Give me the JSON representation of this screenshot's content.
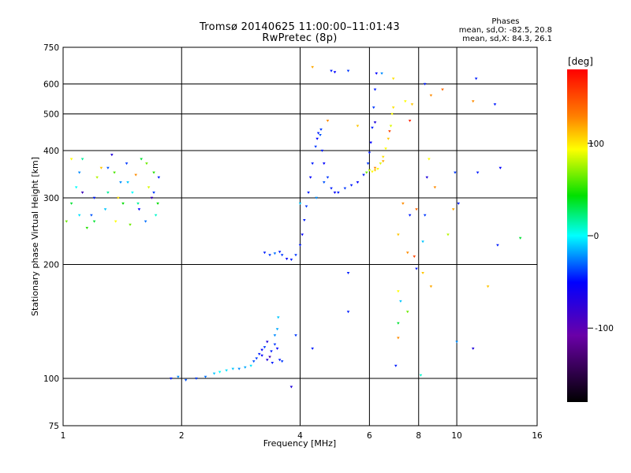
{
  "chart_data": {
    "type": "scatter",
    "title": "Tromsø 20140625 11:00:00–11:01:43",
    "subtitle": "RwPretec (8p)",
    "xlabel": "Frequency [MHz]",
    "ylabel": "Stationary phase Virtual Height [km]",
    "x_scale": "log",
    "y_scale": "log",
    "xlim": [
      1,
      16
    ],
    "ylim": [
      75,
      750
    ],
    "x_ticks": [
      1,
      2,
      4,
      6,
      8,
      10,
      16
    ],
    "y_ticks": [
      75,
      100,
      200,
      300,
      400,
      500,
      600,
      750
    ],
    "grid": true,
    "phase_stats": {
      "heading": "Phases",
      "line_o": "mean, sd,O: -82.5, 20.8",
      "line_x": "mean, sd,X:  84.3, 26.1"
    },
    "colorbar": {
      "label": "[deg]",
      "range": [
        -180,
        180
      ],
      "ticks": [
        100,
        0,
        -100
      ]
    },
    "series": [
      {
        "points": [
          [
            1.88,
            100,
            -100
          ],
          [
            1.96,
            101,
            -60
          ],
          [
            2.05,
            99,
            -80
          ],
          [
            2.18,
            100,
            -90
          ],
          [
            2.3,
            101,
            -70
          ],
          [
            2.42,
            103,
            -40
          ],
          [
            2.5,
            104,
            -20
          ],
          [
            2.6,
            105,
            -30
          ],
          [
            2.7,
            106,
            -40
          ],
          [
            2.8,
            106,
            -60
          ],
          [
            2.9,
            107,
            -50
          ],
          [
            3.0,
            108,
            -30
          ],
          [
            3.05,
            111,
            -80
          ],
          [
            3.1,
            113,
            -90
          ],
          [
            3.15,
            116,
            -100
          ],
          [
            3.2,
            119,
            -110
          ],
          [
            3.25,
            121,
            -90
          ],
          [
            3.3,
            112,
            -120
          ],
          [
            3.35,
            114,
            -130
          ],
          [
            3.4,
            110,
            -100
          ],
          [
            3.45,
            123,
            -90
          ],
          [
            3.5,
            120,
            -110
          ],
          [
            3.55,
            112,
            -100
          ],
          [
            3.6,
            111,
            -90
          ],
          [
            3.45,
            130,
            -60
          ],
          [
            3.5,
            135,
            -50
          ],
          [
            3.52,
            145,
            -40
          ],
          [
            3.2,
            115,
            -110
          ],
          [
            3.3,
            125,
            -120
          ],
          [
            3.38,
            118,
            -100
          ]
        ]
      },
      {
        "points": [
          [
            3.25,
            215,
            -100
          ],
          [
            3.35,
            212,
            -90
          ],
          [
            3.45,
            214,
            -70
          ],
          [
            3.55,
            216,
            -100
          ],
          [
            3.6,
            212,
            -90
          ],
          [
            3.7,
            207,
            -110
          ],
          [
            3.8,
            206,
            -100
          ],
          [
            3.9,
            212,
            -90
          ],
          [
            4.0,
            225,
            -100
          ],
          [
            4.05,
            240,
            -110
          ],
          [
            4.1,
            262,
            -100
          ],
          [
            4.15,
            285,
            -90
          ],
          [
            4.2,
            310,
            -100
          ],
          [
            4.25,
            340,
            -110
          ],
          [
            4.3,
            370,
            -100
          ],
          [
            4.38,
            410,
            -90
          ],
          [
            4.45,
            445,
            -100
          ],
          [
            4.5,
            440,
            -80
          ],
          [
            4.55,
            400,
            -100
          ],
          [
            4.6,
            370,
            -110
          ],
          [
            4.7,
            340,
            -90
          ],
          [
            4.8,
            318,
            -100
          ],
          [
            4.9,
            310,
            -110
          ],
          [
            5.0,
            310,
            -100
          ],
          [
            5.2,
            318,
            -90
          ],
          [
            5.4,
            324,
            -100
          ],
          [
            5.6,
            330,
            -110
          ],
          [
            5.8,
            345,
            -100
          ],
          [
            5.95,
            370,
            -90
          ],
          [
            6.0,
            395,
            -100
          ],
          [
            6.05,
            420,
            -110
          ],
          [
            6.1,
            460,
            -100
          ],
          [
            6.15,
            520,
            -90
          ],
          [
            6.2,
            580,
            -100
          ],
          [
            6.25,
            640,
            -110
          ],
          [
            4.42,
            430,
            -110
          ],
          [
            4.52,
            455,
            -90
          ],
          [
            4.6,
            330,
            -80
          ],
          [
            4.4,
            300,
            -60
          ],
          [
            4.0,
            290,
            -40
          ]
        ]
      },
      {
        "points": [
          [
            5.9,
            350,
            60
          ],
          [
            6.0,
            355,
            80
          ],
          [
            6.1,
            352,
            100
          ],
          [
            6.2,
            355,
            120
          ],
          [
            6.3,
            358,
            100
          ],
          [
            6.4,
            370,
            90
          ],
          [
            6.5,
            385,
            110
          ],
          [
            6.6,
            405,
            100
          ],
          [
            6.7,
            430,
            120
          ],
          [
            6.8,
            465,
            90
          ],
          [
            6.85,
            500,
            100
          ],
          [
            6.9,
            520,
            110
          ],
          [
            6.2,
            360,
            140
          ],
          [
            6.5,
            375,
            130
          ],
          [
            6.75,
            450,
            160
          ]
        ]
      },
      {
        "points": [
          [
            1.02,
            260,
            60
          ],
          [
            1.05,
            290,
            20
          ],
          [
            1.08,
            320,
            -20
          ],
          [
            1.1,
            350,
            -60
          ],
          [
            1.12,
            380,
            0
          ],
          [
            1.15,
            250,
            40
          ],
          [
            1.18,
            270,
            -80
          ],
          [
            1.2,
            300,
            -100
          ],
          [
            1.22,
            340,
            80
          ],
          [
            1.25,
            360,
            120
          ],
          [
            1.28,
            280,
            -40
          ],
          [
            1.3,
            310,
            0
          ],
          [
            1.33,
            390,
            -120
          ],
          [
            1.36,
            260,
            100
          ],
          [
            1.4,
            330,
            -60
          ],
          [
            1.42,
            290,
            30
          ],
          [
            1.45,
            370,
            -90
          ],
          [
            1.48,
            255,
            60
          ],
          [
            1.5,
            310,
            -20
          ],
          [
            1.53,
            345,
            140
          ],
          [
            1.56,
            280,
            -110
          ],
          [
            1.58,
            380,
            20
          ],
          [
            1.62,
            260,
            -70
          ],
          [
            1.65,
            320,
            90
          ],
          [
            1.68,
            300,
            -130
          ],
          [
            1.7,
            350,
            40
          ],
          [
            1.72,
            270,
            -10
          ],
          [
            1.75,
            340,
            -100
          ],
          [
            1.05,
            380,
            100
          ],
          [
            1.12,
            310,
            -130
          ],
          [
            1.2,
            260,
            20
          ],
          [
            1.3,
            360,
            -80
          ],
          [
            1.38,
            300,
            110
          ],
          [
            1.46,
            330,
            -40
          ],
          [
            1.55,
            290,
            0
          ],
          [
            1.63,
            370,
            60
          ],
          [
            1.7,
            310,
            -90
          ],
          [
            1.74,
            290,
            30
          ],
          [
            1.1,
            270,
            -30
          ],
          [
            1.35,
            350,
            50
          ]
        ]
      },
      {
        "points": [
          [
            4.3,
            665,
            130
          ],
          [
            4.8,
            650,
            -100
          ],
          [
            4.9,
            645,
            -110
          ],
          [
            5.3,
            650,
            -90
          ],
          [
            6.45,
            640,
            -60
          ],
          [
            6.9,
            620,
            110
          ],
          [
            7.4,
            540,
            100
          ],
          [
            7.7,
            530,
            120
          ],
          [
            8.3,
            600,
            -100
          ],
          [
            8.6,
            560,
            140
          ],
          [
            9.2,
            580,
            150
          ],
          [
            11.2,
            620,
            -100
          ],
          [
            11.0,
            540,
            140
          ],
          [
            12.5,
            530,
            -100
          ],
          [
            4.7,
            480,
            140
          ],
          [
            5.6,
            465,
            120
          ],
          [
            6.2,
            475,
            -120
          ],
          [
            7.6,
            480,
            170
          ],
          [
            8.5,
            380,
            100
          ],
          [
            8.4,
            340,
            -120
          ],
          [
            8.8,
            320,
            140
          ],
          [
            9.9,
            350,
            -90
          ],
          [
            11.3,
            350,
            -100
          ],
          [
            12.9,
            360,
            -110
          ],
          [
            7.3,
            290,
            140
          ],
          [
            7.6,
            270,
            -100
          ],
          [
            7.9,
            280,
            150
          ],
          [
            8.3,
            270,
            -90
          ],
          [
            9.8,
            280,
            130
          ],
          [
            10.1,
            290,
            -100
          ],
          [
            7.1,
            240,
            120
          ],
          [
            8.2,
            230,
            -40
          ],
          [
            9.5,
            240,
            80
          ],
          [
            12.7,
            225,
            -100
          ],
          [
            14.5,
            235,
            20
          ],
          [
            7.5,
            215,
            140
          ],
          [
            7.8,
            210,
            160
          ],
          [
            7.9,
            195,
            -100
          ],
          [
            8.2,
            190,
            120
          ],
          [
            8.6,
            175,
            130
          ],
          [
            7.1,
            170,
            100
          ],
          [
            7.2,
            160,
            -40
          ],
          [
            7.5,
            150,
            60
          ],
          [
            7.1,
            140,
            20
          ],
          [
            7.1,
            128,
            140
          ],
          [
            7.0,
            108,
            -100
          ],
          [
            8.1,
            102,
            -10
          ],
          [
            4.3,
            120,
            -100
          ],
          [
            5.3,
            190,
            -100
          ],
          [
            5.3,
            150,
            -100
          ],
          [
            3.8,
            95,
            -120
          ],
          [
            11.0,
            120,
            -120
          ],
          [
            12.0,
            175,
            120
          ],
          [
            10.0,
            125,
            -60
          ],
          [
            3.9,
            130,
            -90
          ]
        ]
      }
    ]
  }
}
